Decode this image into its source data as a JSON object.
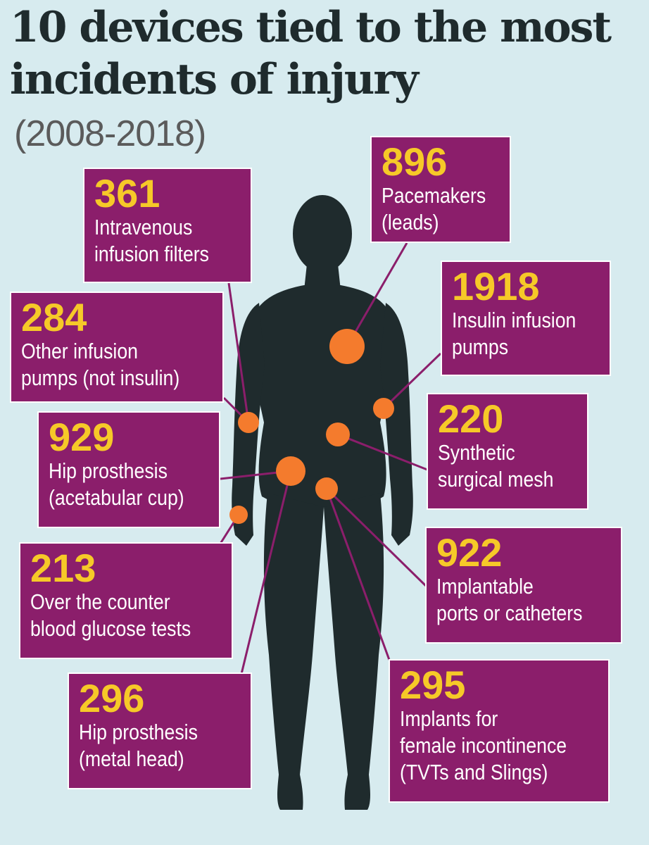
{
  "title_line1": "10 devices tied to the most",
  "title_line2": "incidents of injury",
  "subtitle": "(2008-2018)",
  "colors": {
    "background": "#d7ebef",
    "box": "#8b1e6b",
    "number": "#f6c928",
    "dot": "#f47b2d",
    "silhouette": "#1f2b2d"
  },
  "devices": [
    {
      "key": "pacemakers",
      "count": "896",
      "line1": "Pacemakers",
      "line2": "(leads)",
      "line3": ""
    },
    {
      "key": "iv-filters",
      "count": "361",
      "line1": "Intravenous",
      "line2": "infusion filters",
      "line3": ""
    },
    {
      "key": "insulin-pumps",
      "count": "1918",
      "line1": "Insulin infusion",
      "line2": "pumps",
      "line3": ""
    },
    {
      "key": "other-pumps",
      "count": "284",
      "line1": "Other infusion",
      "line2": "pumps (not insulin)",
      "line3": ""
    },
    {
      "key": "surgical-mesh",
      "count": "220",
      "line1": "Synthetic",
      "line2": "surgical mesh",
      "line3": ""
    },
    {
      "key": "hip-cup",
      "count": "929",
      "line1": "Hip prosthesis",
      "line2": "(acetabular cup)",
      "line3": ""
    },
    {
      "key": "ports-catheters",
      "count": "922",
      "line1": "Implantable",
      "line2": "ports or catheters",
      "line3": ""
    },
    {
      "key": "glucose-tests",
      "count": "213",
      "line1": "Over the counter",
      "line2": "blood glucose tests",
      "line3": ""
    },
    {
      "key": "hip-metal-head",
      "count": "296",
      "line1": "Hip prosthesis",
      "line2": "(metal head)",
      "line3": ""
    },
    {
      "key": "incontinence-implants",
      "count": "295",
      "line1": "Implants for",
      "line2": "female incontinence",
      "line3": "(TVTs and Slings)"
    }
  ]
}
